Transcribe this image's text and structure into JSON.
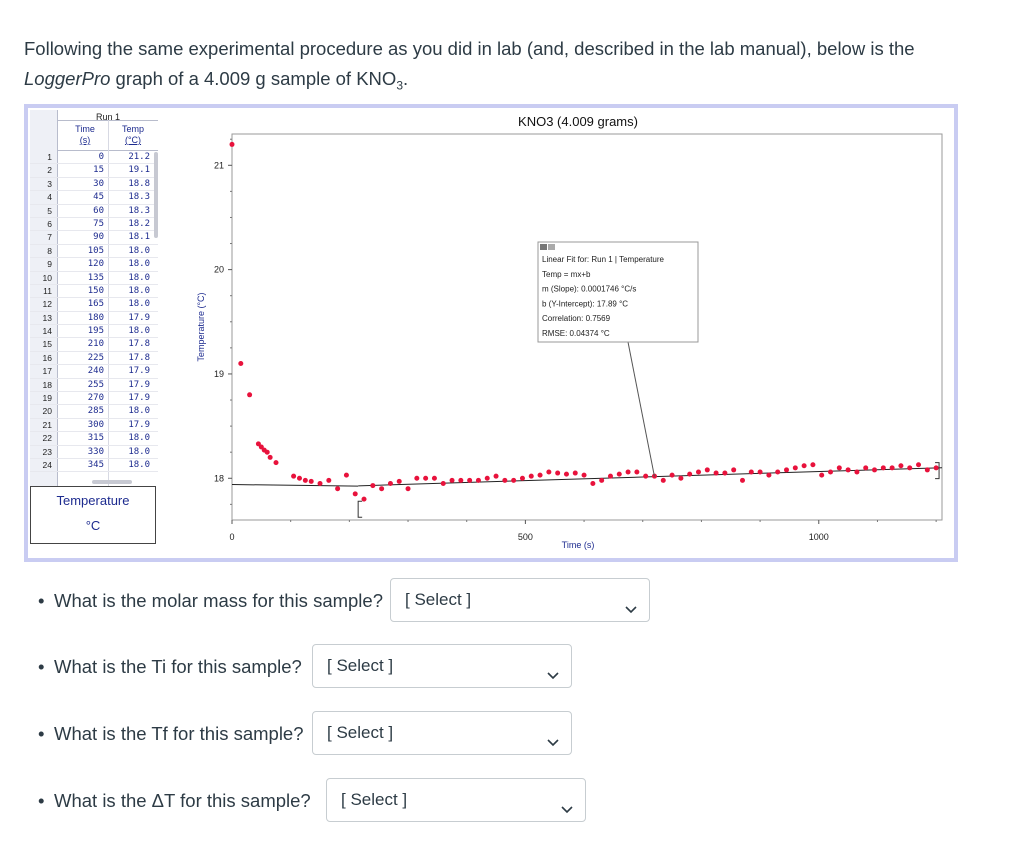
{
  "intro": {
    "line1": "Following the same experimental procedure as you did in lab (and, described in the lab manual), below is the",
    "line2_italic": "LoggerPro",
    "line2_rest": " graph of a 4.009 g sample of KNO",
    "line2_sub": "3",
    "line2_end": "."
  },
  "table": {
    "run_label": "Run 1",
    "col_time": "Time",
    "col_time_unit": "(s)",
    "col_temp": "Temp",
    "col_temp_unit": "(°C)",
    "rows": [
      {
        "n": "1",
        "t": "0",
        "v": "21.2"
      },
      {
        "n": "2",
        "t": "15",
        "v": "19.1"
      },
      {
        "n": "3",
        "t": "30",
        "v": "18.8"
      },
      {
        "n": "4",
        "t": "45",
        "v": "18.3"
      },
      {
        "n": "5",
        "t": "60",
        "v": "18.3"
      },
      {
        "n": "6",
        "t": "75",
        "v": "18.2"
      },
      {
        "n": "7",
        "t": "90",
        "v": "18.1"
      },
      {
        "n": "8",
        "t": "105",
        "v": "18.0"
      },
      {
        "n": "9",
        "t": "120",
        "v": "18.0"
      },
      {
        "n": "10",
        "t": "135",
        "v": "18.0"
      },
      {
        "n": "11",
        "t": "150",
        "v": "18.0"
      },
      {
        "n": "12",
        "t": "165",
        "v": "18.0"
      },
      {
        "n": "13",
        "t": "180",
        "v": "17.9"
      },
      {
        "n": "14",
        "t": "195",
        "v": "18.0"
      },
      {
        "n": "15",
        "t": "210",
        "v": "17.8"
      },
      {
        "n": "16",
        "t": "225",
        "v": "17.8"
      },
      {
        "n": "17",
        "t": "240",
        "v": "17.9"
      },
      {
        "n": "18",
        "t": "255",
        "v": "17.9"
      },
      {
        "n": "19",
        "t": "270",
        "v": "17.9"
      },
      {
        "n": "20",
        "t": "285",
        "v": "18.0"
      },
      {
        "n": "21",
        "t": "300",
        "v": "17.9"
      },
      {
        "n": "22",
        "t": "315",
        "v": "18.0"
      },
      {
        "n": "23",
        "t": "330",
        "v": "18.0"
      },
      {
        "n": "24",
        "t": "345",
        "v": "18.0"
      }
    ]
  },
  "meter": {
    "title": "Temperature",
    "unit": "°C"
  },
  "chart_data": {
    "type": "scatter",
    "title": "KNO3 (4.009 grams)",
    "xlabel": "Time (s)",
    "ylabel": "Temperature (°C)",
    "xlim": [
      0,
      1210
    ],
    "ylim": [
      17.6,
      21.3
    ],
    "xticks": [
      0,
      500,
      1000
    ],
    "yticks": [
      18,
      19,
      20,
      21
    ],
    "series_color": "#e8123c",
    "fit_color": "#222222",
    "points": [
      [
        15,
        19.1
      ],
      [
        30,
        18.8
      ],
      [
        45,
        18.33
      ],
      [
        50,
        18.3
      ],
      [
        55,
        18.27
      ],
      [
        60,
        18.25
      ],
      [
        65,
        18.2
      ],
      [
        75,
        18.15
      ],
      [
        105,
        18.02
      ],
      [
        115,
        18.0
      ],
      [
        125,
        17.98
      ],
      [
        135,
        17.97
      ],
      [
        150,
        17.95
      ],
      [
        165,
        17.98
      ],
      [
        180,
        17.9
      ],
      [
        195,
        18.03
      ],
      [
        210,
        17.85
      ],
      [
        225,
        17.8
      ],
      [
        240,
        17.93
      ],
      [
        255,
        17.9
      ],
      [
        270,
        17.95
      ],
      [
        285,
        17.97
      ],
      [
        300,
        17.9
      ],
      [
        315,
        18.0
      ],
      [
        330,
        18.0
      ],
      [
        345,
        18.0
      ],
      [
        360,
        17.95
      ],
      [
        375,
        17.98
      ],
      [
        390,
        17.98
      ],
      [
        405,
        17.98
      ],
      [
        420,
        17.98
      ],
      [
        435,
        18.0
      ],
      [
        450,
        18.02
      ],
      [
        465,
        17.98
      ],
      [
        480,
        17.98
      ],
      [
        495,
        18.0
      ],
      [
        510,
        18.02
      ],
      [
        525,
        18.03
      ],
      [
        540,
        18.06
      ],
      [
        555,
        18.05
      ],
      [
        570,
        18.04
      ],
      [
        585,
        18.05
      ],
      [
        600,
        18.03
      ],
      [
        615,
        17.95
      ],
      [
        630,
        17.98
      ],
      [
        645,
        18.02
      ],
      [
        660,
        18.04
      ],
      [
        675,
        18.06
      ],
      [
        690,
        18.06
      ],
      [
        705,
        18.02
      ],
      [
        720,
        18.02
      ],
      [
        735,
        17.98
      ],
      [
        750,
        18.03
      ],
      [
        765,
        18.0
      ],
      [
        780,
        18.04
      ],
      [
        795,
        18.06
      ],
      [
        810,
        18.08
      ],
      [
        825,
        18.05
      ],
      [
        840,
        18.05
      ],
      [
        855,
        18.08
      ],
      [
        870,
        17.98
      ],
      [
        885,
        18.06
      ],
      [
        900,
        18.06
      ],
      [
        915,
        18.03
      ],
      [
        930,
        18.06
      ],
      [
        945,
        18.08
      ],
      [
        960,
        18.1
      ],
      [
        975,
        18.12
      ],
      [
        990,
        18.13
      ],
      [
        1005,
        18.03
      ],
      [
        1020,
        18.06
      ],
      [
        1035,
        18.1
      ],
      [
        1050,
        18.08
      ],
      [
        1065,
        18.06
      ],
      [
        1080,
        18.1
      ],
      [
        1095,
        18.08
      ],
      [
        1110,
        18.1
      ],
      [
        1125,
        18.1
      ],
      [
        1140,
        18.12
      ],
      [
        1155,
        18.1
      ],
      [
        1170,
        18.13
      ],
      [
        1185,
        18.08
      ],
      [
        1200,
        18.1
      ]
    ],
    "fit_annotation": {
      "title": "Linear Fit for: Run 1 | Temperature",
      "eq": "Temp = mx+b",
      "slope": "m (Slope): 0.0001746 °C/s",
      "intercept": "b (Y-Intercept): 17.89 °C",
      "correlation": "Correlation: 0.7569",
      "rmse": "RMSE: 0.04374 °C"
    }
  },
  "questions": [
    {
      "text": "What is the molar mass for this sample?",
      "select": "[ Select ]"
    },
    {
      "text": "What is the Ti for this sample?",
      "select": "[ Select ]"
    },
    {
      "text": "What is the Tf for this sample?",
      "select": "[ Select ]"
    },
    {
      "text": "What is the ΔT for this sample?",
      "select": "[ Select ]"
    }
  ]
}
